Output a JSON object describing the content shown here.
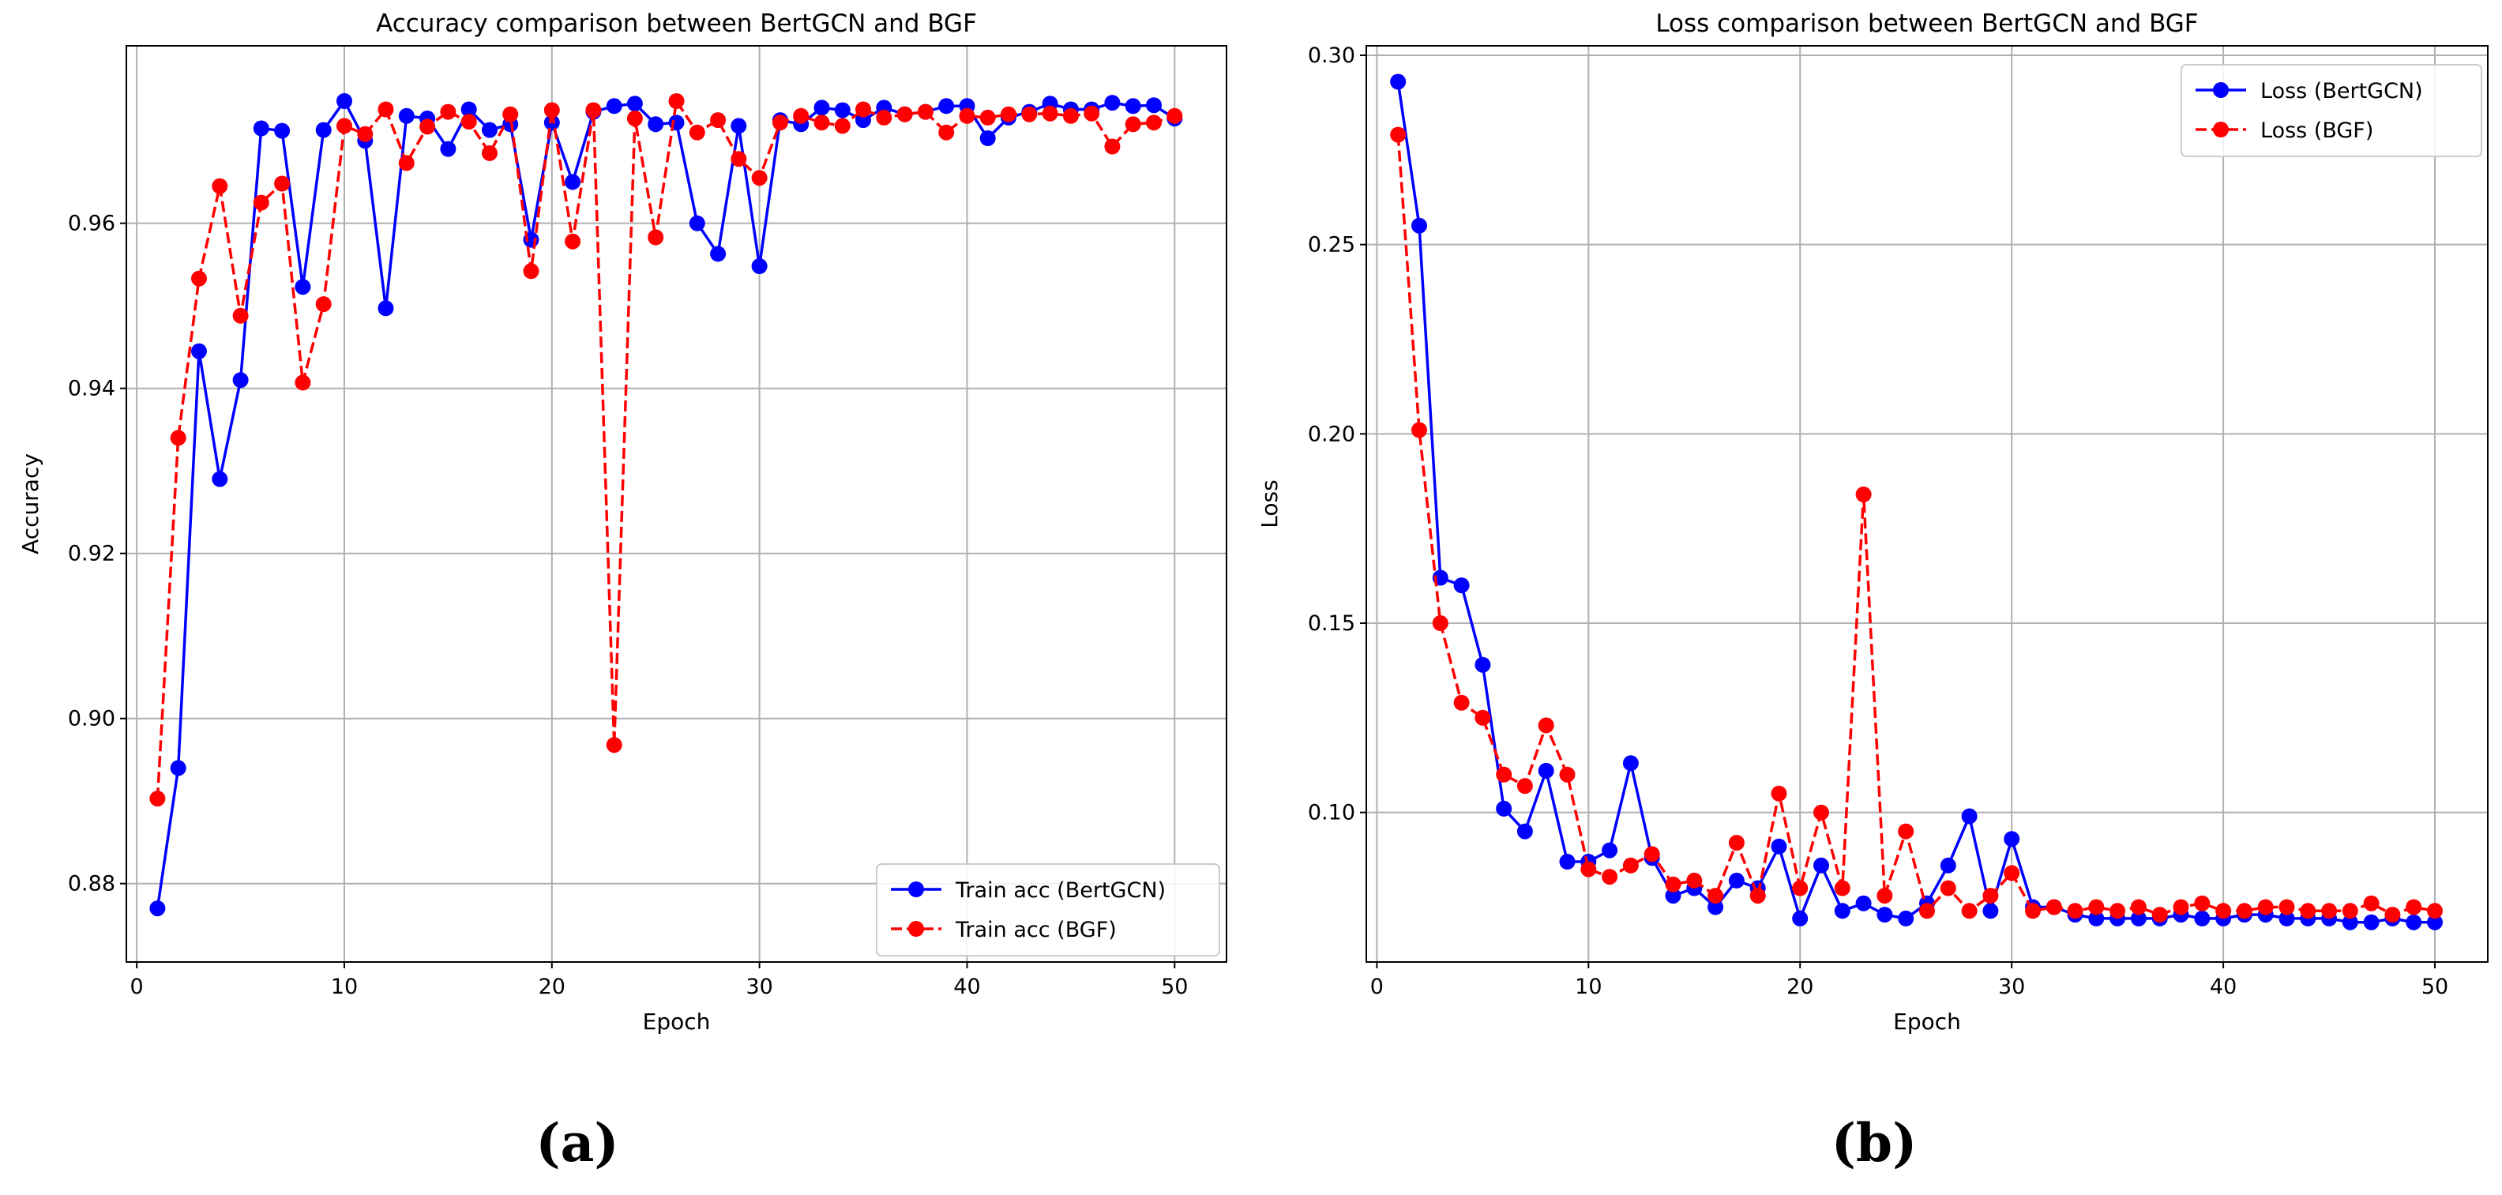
{
  "chart_data": [
    {
      "type": "line",
      "title": "Accuracy comparison between BertGCN and BGF",
      "xlabel": "Epoch",
      "ylabel": "Accuracy",
      "xlim": [
        -0.5,
        52.5
      ],
      "ylim": [
        0.8705,
        0.9815
      ],
      "xticks": [
        0,
        10,
        20,
        30,
        40,
        50
      ],
      "xtick_labels": [
        "0",
        "10",
        "20",
        "30",
        "40",
        "50"
      ],
      "yticks": [
        0.88,
        0.9,
        0.92,
        0.94,
        0.96
      ],
      "ytick_labels": [
        "0.88",
        "0.90",
        "0.92",
        "0.94",
        "0.96"
      ],
      "grid": true,
      "legend_position": "lower-right",
      "panel_label": "(a)",
      "x": [
        1,
        2,
        3,
        4,
        5,
        6,
        7,
        8,
        9,
        10,
        11,
        12,
        13,
        14,
        15,
        16,
        17,
        18,
        19,
        20,
        21,
        22,
        23,
        24,
        25,
        26,
        27,
        28,
        29,
        30,
        31,
        32,
        33,
        34,
        35,
        36,
        37,
        38,
        39,
        40,
        41,
        42,
        43,
        44,
        45,
        46,
        47,
        48,
        49,
        50
      ],
      "series": [
        {
          "name": "Train acc (BertGCN)",
          "color": "#0000ff",
          "dash": "solid",
          "values": [
            0.877,
            0.894,
            0.9445,
            0.929,
            0.941,
            0.9715,
            0.9712,
            0.9523,
            0.9713,
            0.9748,
            0.97,
            0.9497,
            0.973,
            0.9727,
            0.969,
            0.9738,
            0.9713,
            0.972,
            0.958,
            0.9722,
            0.965,
            0.9735,
            0.9742,
            0.9745,
            0.972,
            0.9722,
            0.96,
            0.9563,
            0.9718,
            0.9548,
            0.9725,
            0.972,
            0.974,
            0.9737,
            0.9725,
            0.974,
            0.9732,
            0.9735,
            0.9742,
            0.9742,
            0.9703,
            0.9728,
            0.9735,
            0.9745,
            0.9738,
            0.9738,
            0.9746,
            0.9742,
            0.9743,
            0.9727
          ]
        },
        {
          "name": "Train acc (BGF)",
          "color": "#ff0000",
          "dash": "dashed",
          "values": [
            0.8903,
            0.934,
            0.9533,
            0.9645,
            0.9488,
            0.9625,
            0.9648,
            0.9407,
            0.9502,
            0.9718,
            0.9708,
            0.9738,
            0.9673,
            0.9717,
            0.9735,
            0.9723,
            0.9685,
            0.9732,
            0.9542,
            0.9737,
            0.9578,
            0.9737,
            0.8968,
            0.9727,
            0.9583,
            0.9748,
            0.971,
            0.9725,
            0.9678,
            0.9655,
            0.9722,
            0.973,
            0.9722,
            0.9718,
            0.9738,
            0.9728,
            0.9732,
            0.9735,
            0.971,
            0.973,
            0.9728,
            0.9732,
            0.9732,
            0.9733,
            0.973,
            0.9733,
            0.9693,
            0.972,
            0.9722,
            0.973
          ]
        }
      ]
    },
    {
      "type": "line",
      "title": "Loss comparison between BertGCN and BGF",
      "xlabel": "Epoch",
      "ylabel": "Loss",
      "xlim": [
        -0.5,
        52.5
      ],
      "ylim": [
        0.0605,
        0.3025
      ],
      "xticks": [
        0,
        10,
        20,
        30,
        40,
        50
      ],
      "xtick_labels": [
        "0",
        "10",
        "20",
        "30",
        "40",
        "50"
      ],
      "yticks": [
        0.1,
        0.15,
        0.2,
        0.25,
        0.3
      ],
      "ytick_labels": [
        "0.10",
        "0.15",
        "0.20",
        "0.25",
        "0.30"
      ],
      "grid": true,
      "legend_position": "upper-right",
      "panel_label": "(b)",
      "x": [
        1,
        2,
        3,
        4,
        5,
        6,
        7,
        8,
        9,
        10,
        11,
        12,
        13,
        14,
        15,
        16,
        17,
        18,
        19,
        20,
        21,
        22,
        23,
        24,
        25,
        26,
        27,
        28,
        29,
        30,
        31,
        32,
        33,
        34,
        35,
        36,
        37,
        38,
        39,
        40,
        41,
        42,
        43,
        44,
        45,
        46,
        47,
        48,
        49,
        50
      ],
      "series": [
        {
          "name": "Loss (BertGCN)",
          "color": "#0000ff",
          "dash": "solid",
          "values": [
            0.293,
            0.255,
            0.162,
            0.16,
            0.139,
            0.101,
            0.095,
            0.111,
            0.087,
            0.087,
            0.09,
            0.113,
            0.088,
            0.078,
            0.08,
            0.075,
            0.082,
            0.08,
            0.091,
            0.072,
            0.086,
            0.074,
            0.076,
            0.073,
            0.072,
            0.076,
            0.086,
            0.099,
            0.074,
            0.093,
            0.075,
            0.075,
            0.073,
            0.072,
            0.072,
            0.072,
            0.072,
            0.073,
            0.072,
            0.072,
            0.073,
            0.073,
            0.072,
            0.072,
            0.072,
            0.071,
            0.071,
            0.072,
            0.071,
            0.071
          ]
        },
        {
          "name": "Loss (BGF)",
          "color": "#ff0000",
          "dash": "dashed",
          "values": [
            0.279,
            0.201,
            0.15,
            0.129,
            0.125,
            0.11,
            0.107,
            0.123,
            0.11,
            0.085,
            0.083,
            0.086,
            0.089,
            0.081,
            0.082,
            0.078,
            0.092,
            0.078,
            0.105,
            0.08,
            0.1,
            0.08,
            0.184,
            0.078,
            0.095,
            0.074,
            0.08,
            0.074,
            0.078,
            0.084,
            0.074,
            0.075,
            0.074,
            0.075,
            0.074,
            0.075,
            0.073,
            0.075,
            0.076,
            0.074,
            0.074,
            0.075,
            0.075,
            0.074,
            0.074,
            0.074,
            0.076,
            0.073,
            0.075,
            0.074
          ]
        }
      ]
    }
  ]
}
